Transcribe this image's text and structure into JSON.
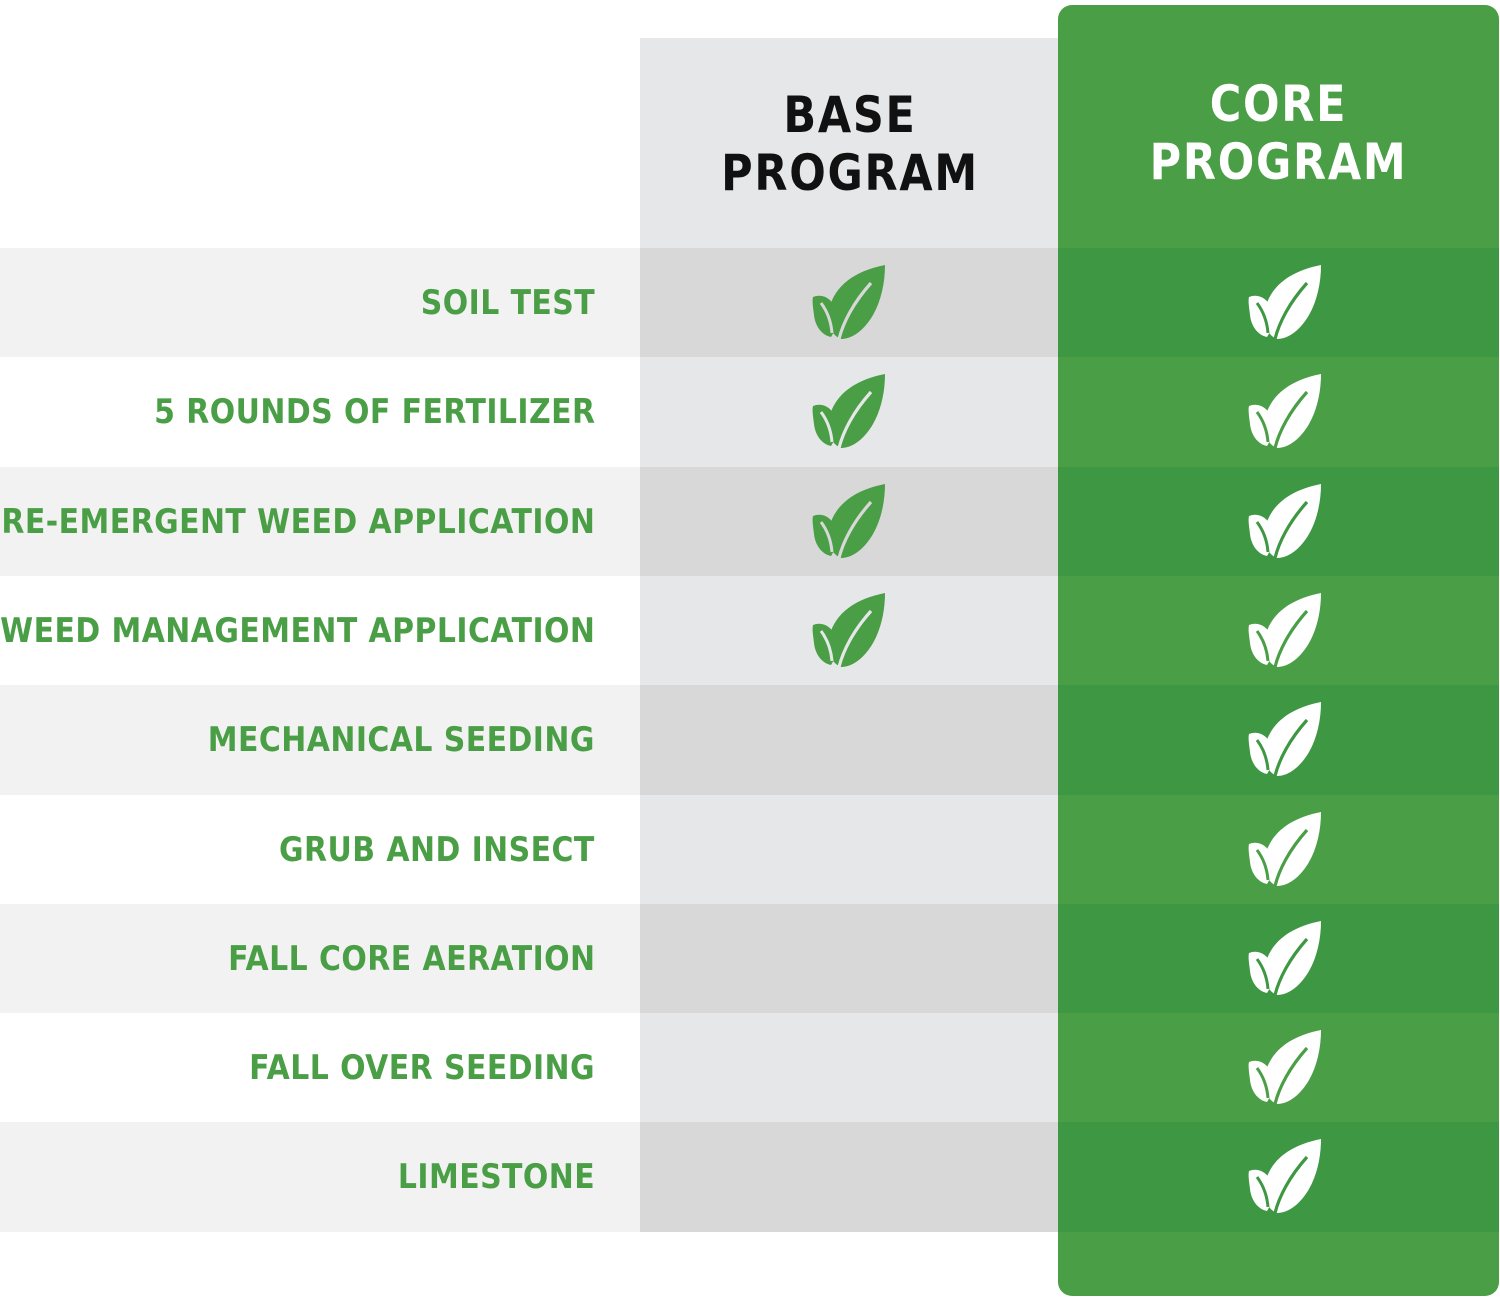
{
  "columns": {
    "base": {
      "line1": "BASE",
      "line2": "PROGRAM"
    },
    "core": {
      "line1": "CORE",
      "line2": "PROGRAM"
    }
  },
  "colors": {
    "accent_green": "#4a9e45",
    "dark_green": "#3e9743",
    "light_gray": "#e6e7e8",
    "mid_gray": "#d8d8d8",
    "text_dark": "#111111"
  },
  "check_icon": "leaf-check-icon",
  "rows": [
    {
      "label": "SOIL TEST",
      "base": true,
      "core": true
    },
    {
      "label": "5 ROUNDS OF FERTILIZER",
      "base": true,
      "core": true
    },
    {
      "label": "PRE-EMERGENT WEED APPLICATION",
      "base": true,
      "core": true
    },
    {
      "label": "WEED MANAGEMENT APPLICATION",
      "base": true,
      "core": true
    },
    {
      "label": "MECHANICAL SEEDING",
      "base": false,
      "core": true
    },
    {
      "label": "GRUB AND INSECT",
      "base": false,
      "core": true
    },
    {
      "label": "FALL CORE AERATION",
      "base": false,
      "core": true
    },
    {
      "label": "FALL OVER SEEDING",
      "base": false,
      "core": true
    },
    {
      "label": "LIMESTONE",
      "base": false,
      "core": true
    }
  ]
}
